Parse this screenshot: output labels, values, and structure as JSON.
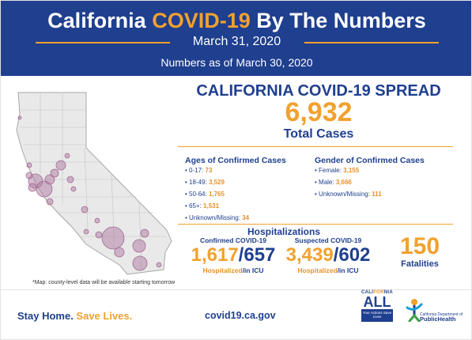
{
  "header": {
    "title_prefix": "California ",
    "title_accent": "COVID-19",
    "title_suffix": " By The Numbers",
    "date": "March 31, 2020",
    "subtitle": "Numbers as of March 30, 2020"
  },
  "spread": {
    "title": "CALIFORNIA COVID-19 SPREAD",
    "total_cases": "6,932",
    "total_label": "Total Cases"
  },
  "ages": {
    "title": "Ages of Confirmed Cases",
    "items": [
      {
        "label": "0-17: ",
        "value": "73"
      },
      {
        "label": "18-49: ",
        "value": "3,529"
      },
      {
        "label": "50-64: ",
        "value": "1,765"
      },
      {
        "label": "65+: ",
        "value": "1,531"
      },
      {
        "label": "Unknown/Missing: ",
        "value": "34"
      }
    ]
  },
  "gender": {
    "title": "Gender of Confirmed Cases",
    "items": [
      {
        "label": "Female: ",
        "value": "3,155"
      },
      {
        "label": "Male: ",
        "value": "3,666"
      },
      {
        "label": "Unknown/Missing: ",
        "value": "111"
      }
    ]
  },
  "hospitalizations": {
    "title": "Hospitalizations",
    "confirmed": {
      "label": "Confirmed COVID-19",
      "hospitalized": "1,617",
      "icu": "657",
      "sub_hospitalized": "Hospitalized",
      "sub_icu": "/in ICU"
    },
    "suspected": {
      "label": "Suspected COVID-19",
      "hospitalized": "3,439",
      "icu": "602",
      "sub_hospitalized": "Hospitalized",
      "sub_icu": "/in ICU"
    }
  },
  "fatalities": {
    "count": "150",
    "label": "Fatalities"
  },
  "map": {
    "note": "*Map: county-level data will be available starting tomorrow"
  },
  "footer": {
    "slogan_stay": "Stay Home. ",
    "slogan_save": "Save Lives.",
    "website": "covid19.ca.gov",
    "ca_all": {
      "top_prefix": "CALI",
      "top_for": "FOR",
      "top_suffix": "NIA",
      "big": "ALL",
      "box_text": "Your Actions Save Lives"
    },
    "cdph": {
      "line1": "California Department of",
      "line2": "PublicHealth"
    }
  },
  "colors": {
    "brand_blue": "#1f3f8f",
    "accent_orange": "#f2a12e",
    "map_bubble": "#b07aa1"
  }
}
